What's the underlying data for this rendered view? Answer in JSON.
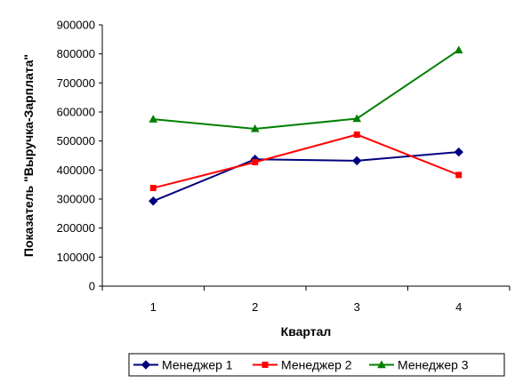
{
  "chart_data": {
    "type": "line",
    "title": "",
    "xlabel": "Квартал",
    "ylabel": "Показатель \"Выручка-Зарплата\"",
    "categories": [
      "1",
      "2",
      "3",
      "4"
    ],
    "ylim": [
      0,
      900000
    ],
    "yticks": [
      0,
      100000,
      200000,
      300000,
      400000,
      500000,
      600000,
      700000,
      800000,
      900000
    ],
    "ytick_labels": [
      "0",
      "100000",
      "200000",
      "300000",
      "400000",
      "500000",
      "600000",
      "700000",
      "800000",
      "900000"
    ],
    "grid": false,
    "legend_position": "bottom",
    "series": [
      {
        "name": "Менеджер 1",
        "color": "#00007f",
        "marker": "diamond",
        "values": [
          293000,
          437000,
          432000,
          462000
        ]
      },
      {
        "name": "Менеджер 2",
        "color": "#ff0000",
        "marker": "square",
        "values": [
          338000,
          427000,
          522000,
          383000
        ]
      },
      {
        "name": "Менеджер 3",
        "color": "#008000",
        "marker": "triangle",
        "values": [
          575000,
          542000,
          577000,
          813000
        ]
      }
    ]
  }
}
